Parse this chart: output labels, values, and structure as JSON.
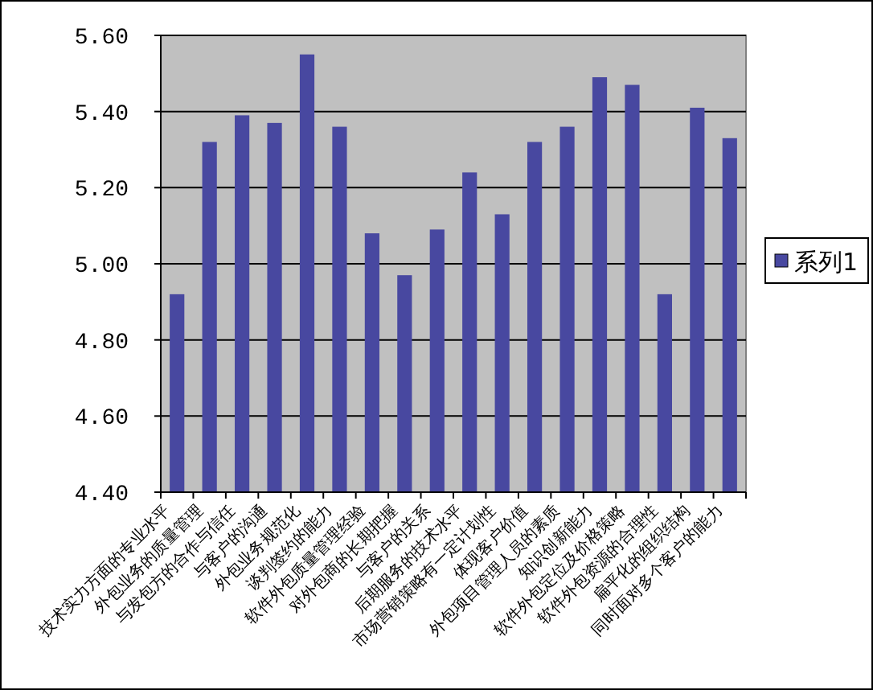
{
  "chart_data": {
    "type": "bar",
    "categories": [
      "技术实力方面的专业水平",
      "外包业务的质量管理",
      "与发包方的合作与信任",
      "与客户的沟通",
      "外包业务规范化",
      "谈判签约的能力",
      "软件外包质量管理经验",
      "对外包商的长期把握",
      "与客户的关系",
      "后期服务的技术水平",
      "市场营销策略有一定计划性",
      "体现客户价值",
      "外包项目管理人员的素质",
      "知识创新能力",
      "软件外包定位及价格策略",
      "软件外包资源的合理性",
      "扁平化的组织结构",
      "同时面对多个客户的能力"
    ],
    "series": [
      {
        "name": "系列1",
        "color": "#4848a0",
        "values": [
          4.92,
          5.32,
          5.39,
          5.37,
          5.55,
          5.36,
          5.08,
          4.97,
          5.09,
          5.24,
          5.13,
          5.32,
          5.36,
          5.49,
          5.47,
          4.92,
          5.41,
          5.33
        ]
      }
    ],
    "ylim": [
      4.4,
      5.6
    ],
    "yticks": [
      {
        "value": 4.4,
        "label": "4.40"
      },
      {
        "value": 4.6,
        "label": "4.60"
      },
      {
        "value": 4.8,
        "label": "4.80"
      },
      {
        "value": 5.0,
        "label": "5.00"
      },
      {
        "value": 5.2,
        "label": "5.20"
      },
      {
        "value": 5.4,
        "label": "5.40"
      },
      {
        "value": 5.6,
        "label": "5.60"
      }
    ],
    "grid": "y",
    "legend": "right"
  }
}
